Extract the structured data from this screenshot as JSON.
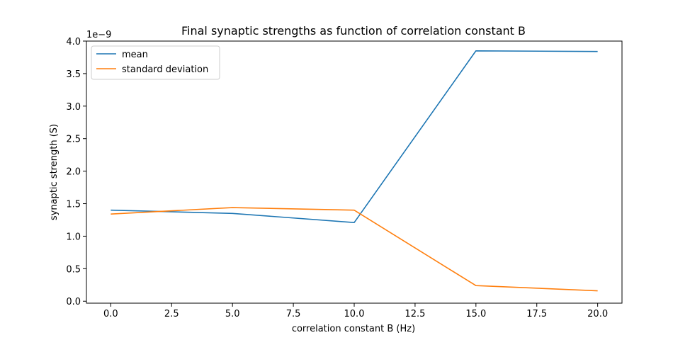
{
  "chart_data": {
    "type": "line",
    "title": "Final synaptic strengths as function of correlation constant B",
    "xlabel": "correlation constant B (Hz)",
    "ylabel": "synaptic strength (S)",
    "y_multiplier_label": "1e−9",
    "x": [
      0,
      5,
      10,
      15,
      20
    ],
    "series": [
      {
        "name": "mean",
        "color": "#1f77b4",
        "values": [
          1.4,
          1.35,
          1.21,
          3.85,
          3.84
        ]
      },
      {
        "name": "standard deviation",
        "color": "#ff7f0e",
        "values": [
          1.34,
          1.44,
          1.4,
          0.24,
          0.16
        ]
      }
    ],
    "xlim": [
      -1,
      21
    ],
    "ylim": [
      -0.03,
      4.0
    ],
    "xticks": [
      0,
      2.5,
      5,
      7.5,
      10,
      12.5,
      15,
      17.5,
      20
    ],
    "xtick_labels": [
      "0.0",
      "2.5",
      "5.0",
      "7.5",
      "10.0",
      "12.5",
      "15.0",
      "17.5",
      "20.0"
    ],
    "yticks": [
      0,
      0.5,
      1.0,
      1.5,
      2.0,
      2.5,
      3.0,
      3.5,
      4.0
    ],
    "ytick_labels": [
      "0.0",
      "0.5",
      "1.0",
      "1.5",
      "2.0",
      "2.5",
      "3.0",
      "3.5",
      "4.0"
    ],
    "legend_position": "top-left",
    "grid": false
  }
}
